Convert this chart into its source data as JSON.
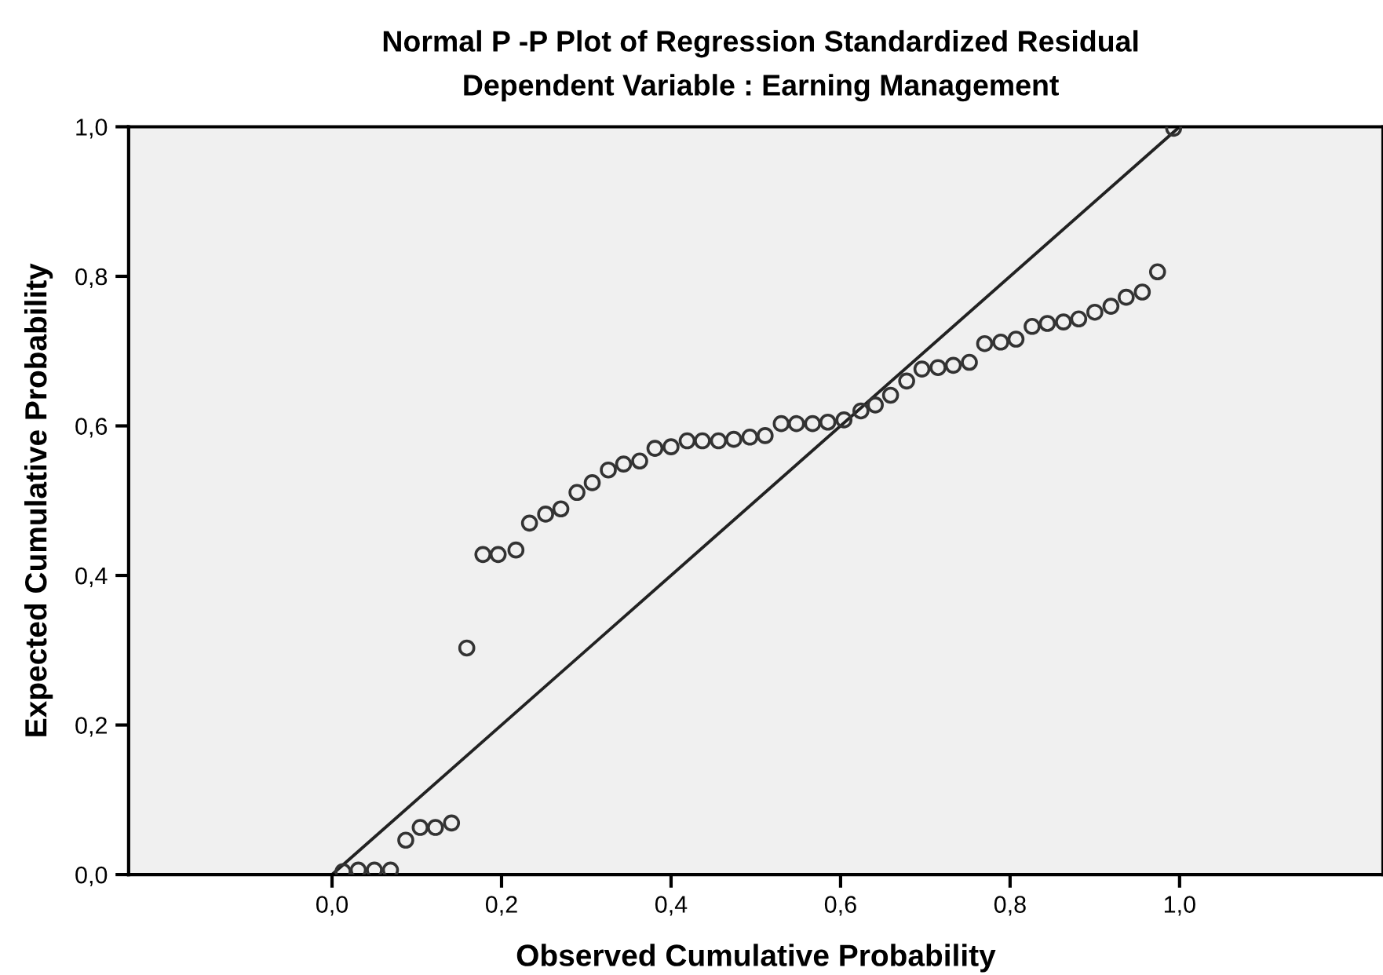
{
  "chart_data": {
    "type": "scatter",
    "title": "Normal P -P Plot of Regression Standardized Residual",
    "subtitle": "Dependent Variable : Earning Management",
    "xlabel": "Observed Cumulative Probability",
    "ylabel": "Expected Cumulative Probability",
    "xlim": [
      -0.24,
      1.24
    ],
    "ylim": [
      0,
      1
    ],
    "xticks": [
      {
        "value": 0,
        "label": "0,0"
      },
      {
        "value": 0.2,
        "label": "0,2"
      },
      {
        "value": 0.4,
        "label": "0,4"
      },
      {
        "value": 0.6,
        "label": "0,6"
      },
      {
        "value": 0.8,
        "label": "0,8"
      },
      {
        "value": 1,
        "label": "1,0"
      }
    ],
    "yticks": [
      {
        "value": 0,
        "label": "0,0"
      },
      {
        "value": 0.2,
        "label": "0,2"
      },
      {
        "value": 0.4,
        "label": "0,4"
      },
      {
        "value": 0.6,
        "label": "0,6"
      },
      {
        "value": 0.8,
        "label": "0,8"
      },
      {
        "value": 1,
        "label": "1,0"
      }
    ],
    "grid": false,
    "legend": false,
    "series": [
      {
        "marker": "circle",
        "color": "#333333",
        "x": [
          0.013,
          0.031,
          0.05,
          0.069,
          0.087,
          0.104,
          0.122,
          0.141,
          0.159,
          0.178,
          0.196,
          0.217,
          0.233,
          0.252,
          0.27,
          0.289,
          0.307,
          0.326,
          0.344,
          0.363,
          0.381,
          0.4,
          0.419,
          0.437,
          0.456,
          0.474,
          0.493,
          0.511,
          0.53,
          0.548,
          0.567,
          0.585,
          0.604,
          0.624,
          0.641,
          0.659,
          0.678,
          0.696,
          0.715,
          0.733,
          0.752,
          0.77,
          0.789,
          0.807,
          0.826,
          0.844,
          0.863,
          0.881,
          0.9,
          0.919,
          0.937,
          0.956,
          0.974,
          0.993
        ],
        "values": [
          0.004,
          0.006,
          0.006,
          0.006,
          0.046,
          0.063,
          0.063,
          0.069,
          0.303,
          0.428,
          0.428,
          0.434,
          0.47,
          0.482,
          0.489,
          0.511,
          0.524,
          0.541,
          0.549,
          0.553,
          0.57,
          0.572,
          0.58,
          0.58,
          0.58,
          0.582,
          0.585,
          0.587,
          0.603,
          0.603,
          0.603,
          0.605,
          0.608,
          0.62,
          0.628,
          0.641,
          0.66,
          0.676,
          0.678,
          0.681,
          0.685,
          0.71,
          0.712,
          0.716,
          0.733,
          0.737,
          0.739,
          0.743,
          0.752,
          0.76,
          0.772,
          0.779,
          0.806,
          0.998
        ]
      },
      {
        "type": "line",
        "marker": "none",
        "line_style": "solid",
        "color": "#222222",
        "x": [
          0,
          1
        ],
        "values": [
          0,
          1
        ]
      }
    ]
  }
}
